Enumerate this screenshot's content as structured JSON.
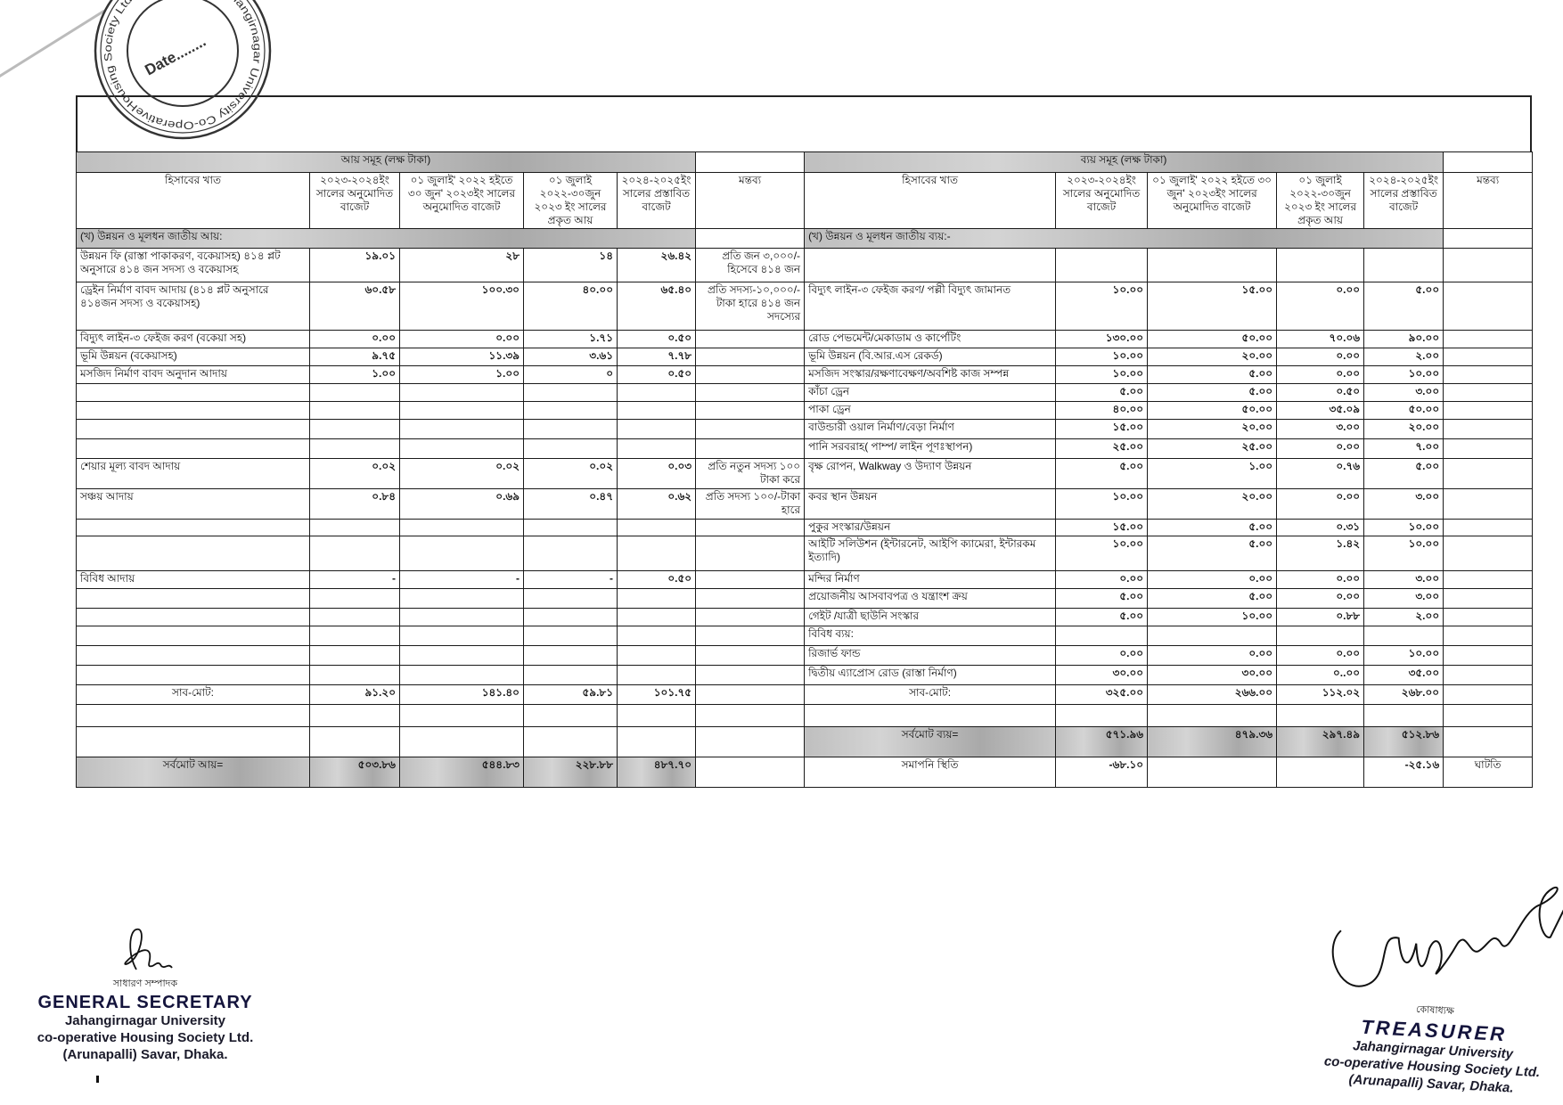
{
  "stamp": {
    "ring_text": "Jahangirnagar University Co-OperativeHousing Society Ltd (Arunapalli)",
    "center_text": "Date........"
  },
  "income": {
    "title": "আয় সমূহ (লক্ষ টাকা)",
    "section": "(খ) উন্নয়ন ও মূলধন জাতীয় আয়:",
    "headers": [
      "হিসাবের খাত",
      "২০২৩-২০২৪ইং সালের অনুমোদিত বাজেট",
      "০১ জুলাই' ২০২২ হইতে ৩০ জুন' ২০২৩ইং সালের অনুমোদিত বাজেট",
      "০১ জুলাই ২০২২-৩০জুন ২০২৩ ইং সালের প্রকৃত আয়",
      "২০২৪-২০২৫ইং সালের প্রস্তাবিত বাজেট"
    ],
    "grand_total_label": "সর্বমোট আয়=",
    "grand_total_values": [
      "৫০৩.৮৬",
      "৫৪৪.৮৩",
      "২২৮.৮৮",
      "৪৮৭.৭০"
    ]
  },
  "remarks_header": "মন্তব্য",
  "expense": {
    "title": "ব্যয় সমূহ (লক্ষ টাকা)",
    "section": "(খ) উন্নয়ন ও মূলধন জাতীয় ব্যয়:-",
    "headers": [
      "হিসাবের খাত",
      "২০২৩-২০২৪ইং সালের অনুমোদিত বাজেট",
      "০১ জুলাই' ২০২২ হইতে ৩০ জুন' ২০২৩ইং সালের অনুমোদিত বাজেট",
      "০১ জুলাই ২০২২-৩০জুন ২০২৩ ইং সালের প্রকৃত আয়",
      "২০২৪-২০২৫ইং সালের প্রস্তাবিত বাজেট",
      "মন্তব্য"
    ],
    "grand_total_label": "সর্বমোট ব্যয়=",
    "grand_total_values": [
      "৫৭১.৯৬",
      "৪৭৯.৩৬",
      "২৯৭.৪৯",
      "৫১২.৮৬"
    ],
    "closing_label": "সমাপনি স্থিতি",
    "closing_values": [
      "-৬৮.১০",
      "",
      "",
      "-২৫.১৬"
    ],
    "closing_remark": "ঘাটতি"
  },
  "rows": [
    {
      "inc": "উন্নয়ন ফি (রাস্তা পাকাকরণ, বকেয়াসহ) ৪১৪ প্লট অনুসারে ৪১৪ জন সদস্য ও বকেয়াসহ",
      "iv": [
        "১৯.০১",
        "২৮",
        "১৪",
        "২৬.৪২"
      ],
      "rm": "প্রতি জন ৩,০০০/- হিসেবে ৪১৪ জন",
      "exp": "",
      "ev": [
        "",
        "",
        "",
        ""
      ],
      "er": ""
    },
    {
      "inc": "ড্রেইন নির্মাণ বাবদ আদায় (৪১৪ প্লট অনুসারে ৪১৪জন সদস্য ও বকেয়াসহ)",
      "iv": [
        "৬০.৫৮",
        "১০০.৩০",
        "৪০.০০",
        "৬৫.৪০"
      ],
      "rm": "প্রতি সদস্য-১০,০০০/- টাকা হারে ৪১৪ জন সদস্যের",
      "exp": "বিদ্যুৎ লাইন-৩ ফেইজ করণ/ পল্লী বিদ্যুৎ জামানত",
      "ev": [
        "১০.০০",
        "১৫.০০",
        "০.০০",
        "৫.০০"
      ],
      "er": ""
    },
    {
      "inc": "বিদ্যুৎ লাইন-৩ ফেইজ করণ (বকেয়া সহ)",
      "iv": [
        "০.০০",
        "০.০০",
        "১.৭১",
        "০.৫০"
      ],
      "rm": "",
      "exp": "রোড পেভমেন্ট/মেকাডাম ও কার্পেটিং",
      "ev": [
        "১৩০.০০",
        "৫০.০০",
        "৭০.০৬",
        "৯০.০০"
      ],
      "er": ""
    },
    {
      "inc": "ভূমি উন্নয়ন (বকেয়াসহ)",
      "iv": [
        "৯.৭৫",
        "১১.৩৯",
        "৩.৬১",
        "৭.৭৮"
      ],
      "rm": "",
      "exp": "ভূমি উন্নয়ন (বি.আর.এস রেকর্ড)",
      "ev": [
        "১০.০০",
        "২০.০০",
        "০.০০",
        "২.০০"
      ],
      "er": ""
    },
    {
      "inc": "মসজিদ নির্মাণ বাবদ অনুদান আদায়",
      "iv": [
        "১.০০",
        "১.০০",
        "০",
        "০.৫০"
      ],
      "rm": "",
      "exp": "মসজিদ সংস্কার/রক্ষণাবেক্ষণ/অবশিষ্ট কাজ সম্পন্ন",
      "ev": [
        "১০.০০",
        "৫.০০",
        "০.০০",
        "১০.০০"
      ],
      "er": ""
    },
    {
      "inc": "",
      "iv": [
        "",
        "",
        "",
        ""
      ],
      "rm": "",
      "exp": "কাঁচা ড্রেন",
      "ev": [
        "৫.০০",
        "৫.০০",
        "০.৫০",
        "৩.০০"
      ],
      "er": ""
    },
    {
      "inc": "",
      "iv": [
        "",
        "",
        "",
        ""
      ],
      "rm": "",
      "exp": "পাকা ড্রেন",
      "ev": [
        "৪০.০০",
        "৫০.০০",
        "৩৫.০৯",
        "৫০.০০"
      ],
      "er": ""
    },
    {
      "inc": "",
      "iv": [
        "",
        "",
        "",
        ""
      ],
      "rm": "",
      "exp": "বাউন্ডারী ওয়াল নির্মাণ/বেড়া নির্মাণ",
      "ev": [
        "১৫.০০",
        "২০.০০",
        "৩.০০",
        "২০.০০"
      ],
      "er": ""
    },
    {
      "inc": "",
      "iv": [
        "",
        "",
        "",
        ""
      ],
      "rm": "",
      "exp": "পানি সরবরাহ( পাম্প/ লাইন পূণঃস্থাপন)",
      "ev": [
        "২৫.০০",
        "২৫.০০",
        "০.০০",
        "৭.০০"
      ],
      "er": ""
    },
    {
      "inc": "শেয়ার মূল্য বাবদ আদায়",
      "iv": [
        "০.০২",
        "০.০২",
        "০.০২",
        "০.০৩"
      ],
      "rm": "প্রতি নতুন সদস্য ১০০ টাকা করে",
      "exp": "বৃক্ষ রোপন, Walkway ও উদ্যাণ উন্নয়ন",
      "ev": [
        "৫.০০",
        "১.০০",
        "০.৭৬",
        "৫.০০"
      ],
      "er": ""
    },
    {
      "inc": "সঞ্চয় আদায়",
      "iv": [
        "০.৮৪",
        "০.৬৯",
        "০.৪৭",
        "০.৬২"
      ],
      "rm": "প্রতি সদস্য ১০০/-টাকা হারে",
      "exp": "কবর স্থান উন্নয়ন",
      "ev": [
        "১০.০০",
        "২০.০০",
        "০.০০",
        "৩.০০"
      ],
      "er": ""
    },
    {
      "inc": "",
      "iv": [
        "",
        "",
        "",
        ""
      ],
      "rm": "",
      "exp": "পুকুর সংস্কার/উন্নয়ন",
      "ev": [
        "১৫.০০",
        "৫.০০",
        "০.৩১",
        "১০.০০"
      ],
      "er": ""
    },
    {
      "inc": "",
      "iv": [
        "",
        "",
        "",
        ""
      ],
      "rm": "",
      "exp": "আইটি সলিউশন (ইন্টারনেট, আইপি ক্যামেরা, ইন্টারকম ইত্যাদি)",
      "ev": [
        "১০.০০",
        "৫.০০",
        "১.৪২",
        "১০.০০"
      ],
      "er": ""
    },
    {
      "inc": "বিবিধ আদায়",
      "iv": [
        "-",
        "-",
        "-",
        "০.৫০"
      ],
      "rm": "",
      "exp": "মন্দির নির্মাণ",
      "ev": [
        "০.০০",
        "০.০০",
        "০.০০",
        "৩.০০"
      ],
      "er": ""
    },
    {
      "inc": "",
      "iv": [
        "",
        "",
        "",
        ""
      ],
      "rm": "",
      "exp": "প্রয়োজনীয় আসবাবপত্র ও যন্ত্রাংশ ক্রয়",
      "ev": [
        "৫.০০",
        "৫.০০",
        "০.০০",
        "৩.০০"
      ],
      "er": ""
    },
    {
      "inc": "",
      "iv": [
        "",
        "",
        "",
        ""
      ],
      "rm": "",
      "exp": "গেইট /যাত্রী ছাউনি সংস্কার",
      "ev": [
        "৫.০০",
        "১০.০০",
        "০.৮৮",
        "২.০০"
      ],
      "er": ""
    },
    {
      "inc": "",
      "iv": [
        "",
        "",
        "",
        ""
      ],
      "rm": "",
      "exp": "বিবিধ ব্যয়:",
      "ev": [
        "",
        "",
        "",
        ""
      ],
      "er": ""
    },
    {
      "inc": "",
      "iv": [
        "",
        "",
        "",
        ""
      ],
      "rm": "",
      "exp": "রিজার্ভ ফান্ড",
      "ev": [
        "০.০০",
        "০.০০",
        "০.০০",
        "১০.০০"
      ],
      "er": ""
    },
    {
      "inc": "",
      "iv": [
        "",
        "",
        "",
        ""
      ],
      "rm": "",
      "exp": "দ্বিতীয় এ্যাপ্রোস রোড (রাস্তা নির্মাণ)",
      "ev": [
        "৩০.০০",
        "৩০.০০",
        "০..০০",
        "৩৫.০০"
      ],
      "er": ""
    },
    {
      "inc": "সাব-মোট:",
      "iv": [
        "৯১.২০",
        "১৪১.৪০",
        "৫৯.৮১",
        "১০১.৭৫"
      ],
      "rm": "",
      "exp": "সাব-মোট:",
      "ev": [
        "৩২৫.০০",
        "২৬৬.০০",
        "১১২.০২",
        "২৬৮.০০"
      ],
      "er": "",
      "subtotal": true
    },
    {
      "inc": "",
      "iv": [
        "",
        "",
        "",
        ""
      ],
      "rm": "",
      "exp": "",
      "ev": [
        "",
        "",
        "",
        ""
      ],
      "er": ""
    }
  ],
  "signatures": {
    "secretary": {
      "bn_title": "সাধারণ সম্পাদক",
      "title": "GENERAL SECRETARY",
      "org": [
        "Jahangirnagar University",
        "co-operative Housing Society Ltd.",
        "(Arunapalli) Savar, Dhaka."
      ]
    },
    "treasurer": {
      "bn_title": "কোষাধ্যক্ষ",
      "title": "TREASURER",
      "org": [
        "Jahangirnagar University",
        "co-operative Housing Society Ltd.",
        "(Arunapalli) Savar, Dhaka."
      ]
    }
  },
  "colors": {
    "shade": "#bfbfbf",
    "ink": "#111111",
    "seal_ink": "#14143c"
  }
}
